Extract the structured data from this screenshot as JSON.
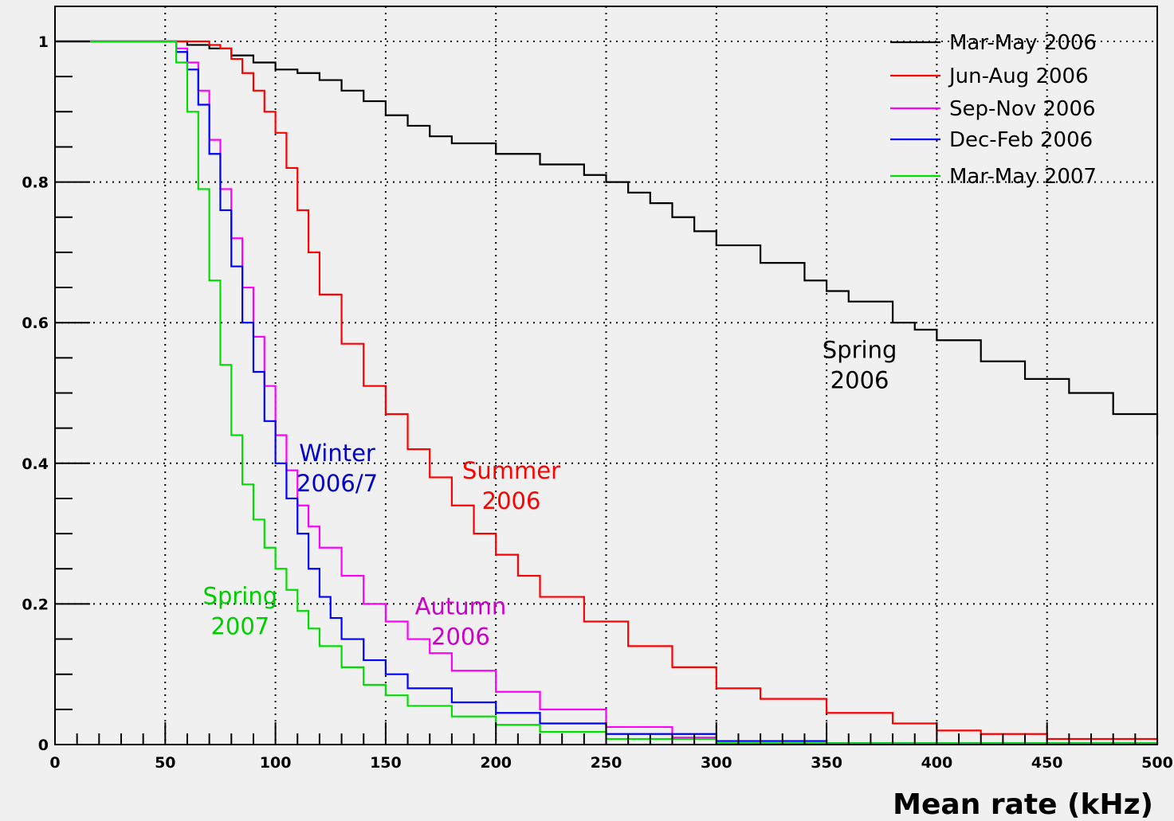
{
  "chart_data": {
    "type": "line",
    "step": true,
    "title": "",
    "xlabel": "Mean rate (kHz)",
    "ylabel": "",
    "xlim": [
      0,
      500
    ],
    "ylim": [
      0,
      1
    ],
    "x_ticks": [
      "0",
      "50",
      "100",
      "150",
      "200",
      "250",
      "300",
      "350",
      "400",
      "450",
      "500"
    ],
    "y_ticks": [
      "0",
      "0.2",
      "0.4",
      "0.6",
      "0.8",
      "1"
    ],
    "grid": true,
    "legend_position": "top-right",
    "series": [
      {
        "name": "Mar-May 2006",
        "color": "#000000",
        "x": [
          0,
          55,
          60,
          70,
          80,
          90,
          100,
          110,
          120,
          130,
          140,
          150,
          160,
          170,
          180,
          200,
          220,
          240,
          250,
          260,
          270,
          280,
          290,
          300,
          320,
          340,
          350,
          360,
          380,
          390,
          400,
          420,
          440,
          460,
          480,
          500
        ],
        "y": [
          1,
          1,
          0.995,
          0.99,
          0.98,
          0.97,
          0.96,
          0.955,
          0.945,
          0.93,
          0.915,
          0.895,
          0.88,
          0.865,
          0.855,
          0.84,
          0.825,
          0.81,
          0.8,
          0.785,
          0.77,
          0.75,
          0.73,
          0.71,
          0.685,
          0.66,
          0.645,
          0.63,
          0.6,
          0.59,
          0.575,
          0.545,
          0.52,
          0.5,
          0.47,
          0.44
        ]
      },
      {
        "name": "Jun-Aug 2006",
        "color": "#ff0000",
        "x": [
          0,
          65,
          70,
          75,
          80,
          85,
          90,
          95,
          100,
          105,
          110,
          115,
          120,
          130,
          140,
          150,
          160,
          170,
          180,
          190,
          200,
          210,
          220,
          240,
          260,
          280,
          300,
          320,
          350,
          380,
          400,
          420,
          450,
          500
        ],
        "y": [
          1,
          1,
          0.995,
          0.99,
          0.975,
          0.955,
          0.93,
          0.9,
          0.87,
          0.82,
          0.76,
          0.7,
          0.64,
          0.57,
          0.51,
          0.47,
          0.42,
          0.38,
          0.34,
          0.3,
          0.27,
          0.24,
          0.21,
          0.175,
          0.14,
          0.11,
          0.08,
          0.065,
          0.045,
          0.03,
          0.02,
          0.015,
          0.008,
          0.002
        ]
      },
      {
        "name": "Sep-Nov 2006",
        "color": "#ff00ff",
        "x": [
          0,
          50,
          55,
          60,
          65,
          70,
          75,
          80,
          85,
          90,
          95,
          100,
          105,
          110,
          115,
          120,
          130,
          140,
          150,
          160,
          170,
          180,
          200,
          220,
          250,
          280,
          300,
          350,
          400,
          500
        ],
        "y": [
          1,
          1,
          0.99,
          0.97,
          0.93,
          0.86,
          0.79,
          0.72,
          0.65,
          0.58,
          0.51,
          0.44,
          0.39,
          0.34,
          0.31,
          0.28,
          0.24,
          0.2,
          0.175,
          0.15,
          0.13,
          0.105,
          0.075,
          0.05,
          0.025,
          0.01,
          0.005,
          0.002,
          0.001,
          0
        ]
      },
      {
        "name": "Dec-Feb 2006",
        "color": "#0000ff",
        "x": [
          0,
          52,
          55,
          60,
          65,
          70,
          75,
          80,
          85,
          90,
          95,
          100,
          105,
          110,
          115,
          120,
          125,
          130,
          140,
          150,
          160,
          180,
          200,
          220,
          250,
          300,
          350,
          500
        ],
        "y": [
          1,
          1,
          0.985,
          0.96,
          0.91,
          0.84,
          0.76,
          0.68,
          0.6,
          0.53,
          0.46,
          0.4,
          0.35,
          0.3,
          0.25,
          0.21,
          0.18,
          0.15,
          0.12,
          0.1,
          0.08,
          0.06,
          0.045,
          0.03,
          0.015,
          0.005,
          0.002,
          0
        ]
      },
      {
        "name": "Mar-May 2007",
        "color": "#00dd00",
        "x": [
          0,
          52,
          55,
          60,
          65,
          70,
          75,
          80,
          85,
          90,
          95,
          100,
          105,
          110,
          115,
          120,
          130,
          140,
          150,
          160,
          180,
          200,
          220,
          250,
          300,
          500
        ],
        "y": [
          1,
          1,
          0.97,
          0.9,
          0.79,
          0.66,
          0.54,
          0.44,
          0.37,
          0.32,
          0.28,
          0.25,
          0.22,
          0.19,
          0.165,
          0.14,
          0.11,
          0.085,
          0.07,
          0.055,
          0.04,
          0.028,
          0.018,
          0.008,
          0.002,
          0
        ]
      }
    ],
    "annotations": [
      {
        "lines": [
          "Spring",
          "2006"
        ],
        "color": "#000000",
        "x": 365,
        "y": 0.55
      },
      {
        "lines": [
          "Summer",
          "2006"
        ],
        "color": "#ff0000",
        "x": 207,
        "y": 0.378
      },
      {
        "lines": [
          "Winter",
          "2006/7"
        ],
        "color": "#0000cc",
        "x": 128,
        "y": 0.403
      },
      {
        "lines": [
          "Autumn",
          "2006"
        ],
        "color": "#cc00cc",
        "x": 184,
        "y": 0.185
      },
      {
        "lines": [
          "Spring",
          "2007"
        ],
        "color": "#00cc00",
        "x": 84,
        "y": 0.2
      }
    ]
  }
}
